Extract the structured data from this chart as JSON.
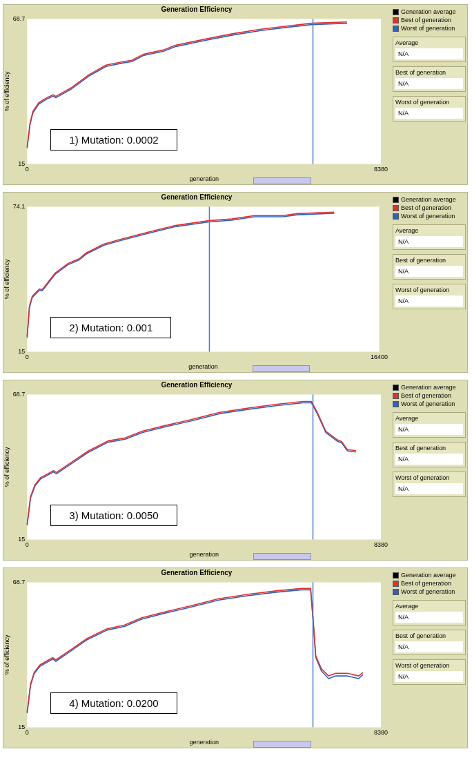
{
  "chart_data": [
    {
      "type": "line",
      "title": "Generation Efficiency",
      "xlabel": "generation",
      "ylabel": "% of efficiency",
      "legend": "right",
      "marker": "none",
      "x": [
        0,
        68,
        136,
        272,
        442,
        612,
        680,
        1054,
        1461,
        1869,
        2276,
        2480,
        2752,
        3228,
        3500,
        4180,
        4860,
        5539,
        6219,
        6743,
        7578
      ],
      "series": [
        {
          "name": "Generation average",
          "color": "#000000",
          "values": [
            null,
            null,
            null,
            null,
            null,
            null,
            null,
            null,
            null,
            null,
            null,
            null,
            null,
            null,
            null,
            null,
            null,
            null,
            null,
            null,
            null
          ]
        },
        {
          "name": "Best of generation",
          "color": "#e03030",
          "values": [
            21.3,
            30.0,
            34.4,
            37.6,
            39.3,
            40.6,
            40.0,
            43.3,
            48.0,
            51.6,
            52.9,
            53.4,
            55.6,
            57.2,
            58.9,
            61.1,
            63.2,
            64.9,
            66.2,
            67.1,
            67.6
          ]
        },
        {
          "name": "Worst of generation",
          "color": "#3060c0",
          "values": [
            20.8,
            29.5,
            33.9,
            37.1,
            38.8,
            40.1,
            39.5,
            42.8,
            47.5,
            51.1,
            52.4,
            52.9,
            55.1,
            56.7,
            58.4,
            60.6,
            62.7,
            64.4,
            65.7,
            66.6,
            67.1
          ]
        }
      ],
      "xlim": [
        0,
        8380
      ],
      "ylim": [
        15,
        68.7
      ],
      "xticks": [
        0,
        8380
      ],
      "yticks": [
        15,
        68.7
      ],
      "ref_lines": [
        {
          "axis": "x",
          "value": 6770,
          "color": "#4a7cc8"
        }
      ],
      "annotations": [
        "1) Mutation: 0.0002",
        "Average",
        "N/A",
        "Best of generation",
        "N/A",
        "Worst of generation",
        "N/A"
      ]
    },
    {
      "type": "line",
      "title": "Generation Efficiency",
      "xlabel": "generation",
      "ylabel": "% of efficiency",
      "legend": "right",
      "marker": "none",
      "x": [
        0,
        106,
        239,
        571,
        703,
        1300,
        1898,
        2428,
        2760,
        3557,
        4220,
        5547,
        6874,
        8467,
        9528,
        10590,
        11917,
        12580,
        14305
      ],
      "series": [
        {
          "name": "Generation average",
          "color": "#000000",
          "values": [
            null,
            null,
            null,
            null,
            null,
            null,
            null,
            null,
            null,
            null,
            null,
            null,
            null,
            null,
            null,
            null,
            null,
            null,
            null
          ]
        },
        {
          "name": "Best of generation",
          "color": "#e03030",
          "values": [
            21.2,
            33.5,
            37.6,
            40.6,
            40.3,
            47.0,
            50.9,
            52.9,
            55.3,
            58.8,
            60.5,
            63.5,
            66.4,
            68.4,
            69.1,
            70.5,
            70.5,
            71.3,
            71.9
          ]
        },
        {
          "name": "Worst of generation",
          "color": "#3060c0",
          "values": [
            20.7,
            33.0,
            37.1,
            40.1,
            39.8,
            46.5,
            50.4,
            52.4,
            54.8,
            58.3,
            60.0,
            63.0,
            65.9,
            67.9,
            68.6,
            70.0,
            70.0,
            70.8,
            71.4
          ]
        }
      ],
      "xlim": [
        0,
        16400
      ],
      "ylim": [
        15,
        74.1
      ],
      "xticks": [
        0,
        16400
      ],
      "yticks": [
        15,
        74.1
      ],
      "ref_lines": [
        {
          "axis": "x",
          "value": 8490,
          "color": "#4a7cc8"
        }
      ],
      "annotations": [
        "2) Mutation: 0.001",
        "Average",
        "N/A",
        "Best of generation",
        "N/A",
        "Worst of generation",
        "N/A"
      ]
    },
    {
      "type": "line",
      "title": "Generation Efficiency",
      "xlabel": "generation",
      "ylabel": "% of efficiency",
      "legend": "right",
      "marker": "none",
      "x": [
        0,
        81,
        183,
        319,
        625,
        693,
        1032,
        1440,
        1915,
        2322,
        2730,
        3273,
        3884,
        4563,
        5242,
        5921,
        6532,
        6736,
        6872,
        7075,
        7347,
        7449,
        7585,
        7789
      ],
      "series": [
        {
          "name": "Generation average",
          "color": "#000000",
          "values": [
            null,
            null,
            null,
            null,
            null,
            null,
            null,
            null,
            null,
            null,
            null,
            null,
            null,
            null,
            null,
            null,
            null,
            null,
            null,
            null,
            null,
            null,
            null,
            null
          ]
        },
        {
          "name": "Best of generation",
          "color": "#e03030",
          "values": [
            20.7,
            30.9,
            35.2,
            37.9,
            40.5,
            39.8,
            43.4,
            47.7,
            51.5,
            52.6,
            55.1,
            57.2,
            59.4,
            62.1,
            63.7,
            65.1,
            66.1,
            66.1,
            62.1,
            55.1,
            51.9,
            51.3,
            48.3,
            47.9
          ]
        },
        {
          "name": "Worst of generation",
          "color": "#3060c0",
          "values": [
            20.2,
            30.4,
            34.7,
            37.4,
            40.0,
            39.3,
            42.9,
            47.2,
            51.0,
            52.1,
            54.6,
            56.7,
            58.9,
            61.6,
            63.2,
            64.6,
            65.6,
            65.6,
            61.6,
            54.6,
            51.4,
            50.8,
            47.8,
            47.4
          ]
        }
      ],
      "xlim": [
        0,
        8380
      ],
      "ylim": [
        15,
        68.7
      ],
      "xticks": [
        0,
        8380
      ],
      "yticks": [
        15,
        68.7
      ],
      "ref_lines": [
        {
          "axis": "x",
          "value": 6770,
          "color": "#4a7cc8"
        }
      ],
      "annotations": [
        "3) Mutation: 0.0050",
        "Average",
        "N/A",
        "Best of generation",
        "N/A",
        "Worst of generation",
        "N/A"
      ]
    },
    {
      "type": "line",
      "title": "Generation Efficiency",
      "xlabel": "generation",
      "ylabel": "% of efficiency",
      "legend": "right",
      "marker": "none",
      "x": [
        0,
        81,
        169,
        305,
        609,
        677,
        1016,
        1422,
        1896,
        2302,
        2708,
        3250,
        3859,
        4536,
        5213,
        5890,
        6499,
        6715,
        6769,
        6837,
        6972,
        7142,
        7311,
        7582,
        7853,
        7955
      ],
      "series": [
        {
          "name": "Generation average",
          "color": "#000000",
          "values": [
            null,
            null,
            null,
            null,
            null,
            null,
            null,
            null,
            null,
            null,
            null,
            null,
            null,
            null,
            null,
            null,
            null,
            null,
            null,
            null,
            null,
            null,
            null,
            null,
            null,
            null
          ]
        },
        {
          "name": "Best of generation",
          "color": "#e03030",
          "values": [
            20.7,
            31.0,
            35.4,
            38.1,
            40.8,
            39.9,
            43.5,
            47.9,
            51.5,
            52.8,
            55.5,
            57.7,
            59.9,
            62.6,
            64.2,
            65.5,
            66.4,
            66.4,
            56.1,
            41.4,
            36.6,
            34.0,
            35.0,
            35.0,
            34.0,
            35.3
          ]
        },
        {
          "name": "Worst of generation",
          "color": "#3060c0",
          "values": [
            20.2,
            30.5,
            34.9,
            37.6,
            40.3,
            39.4,
            43.0,
            47.4,
            51.0,
            52.3,
            55.0,
            57.2,
            59.4,
            62.1,
            63.7,
            65.0,
            65.9,
            65.9,
            55.6,
            40.9,
            35.8,
            33.0,
            34.0,
            34.0,
            33.0,
            34.5
          ]
        }
      ],
      "xlim": [
        0,
        8380
      ],
      "ylim": [
        15,
        68.7
      ],
      "xticks": [
        0,
        8380
      ],
      "yticks": [
        15,
        68.7
      ],
      "ref_lines": [
        {
          "axis": "x",
          "value": 6770,
          "color": "#4a7cc8"
        }
      ],
      "annotations": [
        "4) Mutation: 0.0200",
        "Average",
        "N/A",
        "Best of generation",
        "N/A",
        "Worst of generation",
        "N/A"
      ]
    }
  ]
}
